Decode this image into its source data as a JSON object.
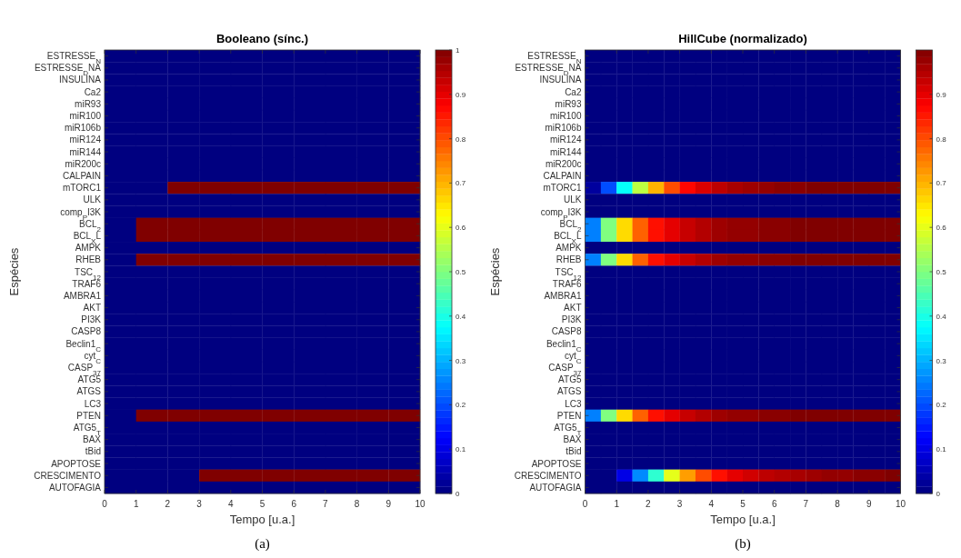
{
  "chart_data": [
    {
      "type": "heatmap",
      "title": "Booleano (sínc.)",
      "xlabel": "Tempo [u.a.]",
      "ylabel": "Espécies",
      "annotations": [
        "(a)"
      ],
      "x": [
        0.5,
        1.5,
        2.5,
        3.5,
        4.5,
        5.5,
        6.5,
        7.5,
        8.5,
        9.5
      ],
      "xlim": [
        0,
        10
      ],
      "xticks": [
        0,
        1,
        2,
        3,
        4,
        5,
        6,
        7,
        8,
        9,
        10
      ],
      "y_categories": [
        "ESTRESSE$_{N}$",
        "ESTRESSE$_{D}$NA",
        "INSULINA",
        "Ca2",
        "miR93",
        "miR100",
        "miR106b",
        "miR124",
        "miR144",
        "miR200c",
        "CALPAIN",
        "mTORC1",
        "ULK",
        "comp$_{P}$I3K",
        "BCL$_{2}$",
        "BCL$_{X}$L",
        "AMPK",
        "RHEB",
        "TSC$_{12}$",
        "TRAF6",
        "AMBRA1",
        "AKT",
        "PI3K",
        "CASP8",
        "Beclin1$_{C}$",
        "cyt$_{C}$",
        "CASP$_{37}$",
        "ATG5",
        "ATGS",
        "LC3",
        "PTEN",
        "ATG5$_{T}$",
        "BAX",
        "tBid",
        "APOPTOSE",
        "CRESCIMENTO",
        "AUTOFAGIA"
      ],
      "cells": [
        [
          0,
          0,
          0,
          0,
          0,
          0,
          0,
          0,
          0,
          0
        ],
        [
          0,
          0,
          0,
          0,
          0,
          0,
          0,
          0,
          0,
          0
        ],
        [
          0,
          0,
          0,
          0,
          0,
          0,
          0,
          0,
          0,
          0
        ],
        [
          0,
          0,
          0,
          0,
          0,
          0,
          0,
          0,
          0,
          0
        ],
        [
          0,
          0,
          0,
          0,
          0,
          0,
          0,
          0,
          0,
          0
        ],
        [
          0,
          0,
          0,
          0,
          0,
          0,
          0,
          0,
          0,
          0
        ],
        [
          0,
          0,
          0,
          0,
          0,
          0,
          0,
          0,
          0,
          0
        ],
        [
          0,
          0,
          0,
          0,
          0,
          0,
          0,
          0,
          0,
          0
        ],
        [
          0,
          0,
          0,
          0,
          0,
          0,
          0,
          0,
          0,
          0
        ],
        [
          0,
          0,
          0,
          0,
          0,
          0,
          0,
          0,
          0,
          0
        ],
        [
          0,
          0,
          0,
          0,
          0,
          0,
          0,
          0,
          0,
          0
        ],
        [
          0,
          0,
          1,
          1,
          1,
          1,
          1,
          1,
          1,
          1
        ],
        [
          0,
          0,
          0,
          0,
          0,
          0,
          0,
          0,
          0,
          0
        ],
        [
          0,
          0,
          0,
          0,
          0,
          0,
          0,
          0,
          0,
          0
        ],
        [
          0,
          1,
          1,
          1,
          1,
          1,
          1,
          1,
          1,
          1
        ],
        [
          0,
          1,
          1,
          1,
          1,
          1,
          1,
          1,
          1,
          1
        ],
        [
          0,
          0,
          0,
          0,
          0,
          0,
          0,
          0,
          0,
          0
        ],
        [
          0,
          1,
          1,
          1,
          1,
          1,
          1,
          1,
          1,
          1
        ],
        [
          0,
          0,
          0,
          0,
          0,
          0,
          0,
          0,
          0,
          0
        ],
        [
          0,
          0,
          0,
          0,
          0,
          0,
          0,
          0,
          0,
          0
        ],
        [
          0,
          0,
          0,
          0,
          0,
          0,
          0,
          0,
          0,
          0
        ],
        [
          0,
          0,
          0,
          0,
          0,
          0,
          0,
          0,
          0,
          0
        ],
        [
          0,
          0,
          0,
          0,
          0,
          0,
          0,
          0,
          0,
          0
        ],
        [
          0,
          0,
          0,
          0,
          0,
          0,
          0,
          0,
          0,
          0
        ],
        [
          0,
          0,
          0,
          0,
          0,
          0,
          0,
          0,
          0,
          0
        ],
        [
          0,
          0,
          0,
          0,
          0,
          0,
          0,
          0,
          0,
          0
        ],
        [
          0,
          0,
          0,
          0,
          0,
          0,
          0,
          0,
          0,
          0
        ],
        [
          0,
          0,
          0,
          0,
          0,
          0,
          0,
          0,
          0,
          0
        ],
        [
          0,
          0,
          0,
          0,
          0,
          0,
          0,
          0,
          0,
          0
        ],
        [
          0,
          0,
          0,
          0,
          0,
          0,
          0,
          0,
          0,
          0
        ],
        [
          0,
          1,
          1,
          1,
          1,
          1,
          1,
          1,
          1,
          1
        ],
        [
          0,
          0,
          0,
          0,
          0,
          0,
          0,
          0,
          0,
          0
        ],
        [
          0,
          0,
          0,
          0,
          0,
          0,
          0,
          0,
          0,
          0
        ],
        [
          0,
          0,
          0,
          0,
          0,
          0,
          0,
          0,
          0,
          0
        ],
        [
          0,
          0,
          0,
          0,
          0,
          0,
          0,
          0,
          0,
          0
        ],
        [
          0,
          0,
          0,
          1,
          1,
          1,
          1,
          1,
          1,
          1
        ],
        [
          0,
          0,
          0,
          0,
          0,
          0,
          0,
          0,
          0,
          0
        ]
      ],
      "clim": [
        0,
        1
      ],
      "cticks": [
        0,
        0.1,
        0.2,
        0.3,
        0.4,
        0.5,
        0.6,
        0.7,
        0.8,
        0.9,
        1
      ]
    },
    {
      "type": "heatmap",
      "title": "HillCube (normalizado)",
      "xlabel": "Tempo [u.a.]",
      "ylabel": "Espécies",
      "annotations": [
        "(b)"
      ],
      "x": [
        0.25,
        0.75,
        1.25,
        1.75,
        2.25,
        2.75,
        3.25,
        3.75,
        4.25,
        4.75,
        5.25,
        5.75,
        6.25,
        6.75,
        7.25,
        7.75,
        8.25,
        8.75,
        9.25,
        9.75
      ],
      "xlim": [
        0,
        10
      ],
      "xticks": [
        0,
        1,
        2,
        3,
        4,
        5,
        6,
        7,
        8,
        9,
        10
      ],
      "y_categories": [
        "ESTRESSE$_{N}$",
        "ESTRESSE$_{D}$NA",
        "INSULINA",
        "Ca2",
        "miR93",
        "miR100",
        "miR106b",
        "miR124",
        "miR144",
        "miR200c",
        "CALPAIN",
        "mTORC1",
        "ULK",
        "comp$_{P}$I3K",
        "BCL$_{2}$",
        "BCL$_{X}$L",
        "AMPK",
        "RHEB",
        "TSC$_{12}$",
        "TRAF6",
        "AMBRA1",
        "AKT",
        "PI3K",
        "CASP8",
        "Beclin1$_{C}$",
        "cyt$_{C}$",
        "CASP$_{37}$",
        "ATG5",
        "ATGS",
        "LC3",
        "PTEN",
        "ATG5$_{T}$",
        "BAX",
        "tBid",
        "APOPTOSE",
        "CRESCIMENTO",
        "AUTOFAGIA"
      ],
      "cells": [
        [
          0,
          0,
          0,
          0,
          0,
          0,
          0,
          0,
          0,
          0,
          0,
          0,
          0,
          0,
          0,
          0,
          0,
          0,
          0,
          0
        ],
        [
          0,
          0,
          0,
          0,
          0,
          0,
          0,
          0,
          0,
          0,
          0,
          0,
          0,
          0,
          0,
          0,
          0,
          0,
          0,
          0
        ],
        [
          0,
          0,
          0,
          0,
          0,
          0,
          0,
          0,
          0,
          0,
          0,
          0,
          0,
          0,
          0,
          0,
          0,
          0,
          0,
          0
        ],
        [
          0,
          0,
          0,
          0,
          0,
          0,
          0,
          0,
          0,
          0,
          0,
          0,
          0,
          0,
          0,
          0,
          0,
          0,
          0,
          0
        ],
        [
          0,
          0,
          0,
          0,
          0,
          0,
          0,
          0,
          0,
          0,
          0,
          0,
          0,
          0,
          0,
          0,
          0,
          0,
          0,
          0
        ],
        [
          0,
          0,
          0,
          0,
          0,
          0,
          0,
          0,
          0,
          0,
          0,
          0,
          0,
          0,
          0,
          0,
          0,
          0,
          0,
          0
        ],
        [
          0,
          0,
          0,
          0,
          0,
          0,
          0,
          0,
          0,
          0,
          0,
          0,
          0,
          0,
          0,
          0,
          0,
          0,
          0,
          0
        ],
        [
          0,
          0,
          0,
          0,
          0,
          0,
          0,
          0,
          0,
          0,
          0,
          0,
          0,
          0,
          0,
          0,
          0,
          0,
          0,
          0
        ],
        [
          0,
          0,
          0,
          0,
          0,
          0,
          0,
          0,
          0,
          0,
          0,
          0,
          0,
          0,
          0,
          0,
          0,
          0,
          0,
          0
        ],
        [
          0,
          0,
          0,
          0,
          0,
          0,
          0,
          0,
          0,
          0,
          0,
          0,
          0,
          0,
          0,
          0,
          0,
          0,
          0,
          0
        ],
        [
          0,
          0,
          0,
          0,
          0,
          0,
          0,
          0,
          0,
          0,
          0,
          0,
          0,
          0,
          0,
          0,
          0,
          0,
          0,
          0
        ],
        [
          0.03,
          0.2,
          0.38,
          0.56,
          0.7,
          0.8,
          0.87,
          0.91,
          0.94,
          0.96,
          0.97,
          0.98,
          0.99,
          0.99,
          1,
          1,
          1,
          1,
          1,
          1
        ],
        [
          0,
          0,
          0,
          0,
          0,
          0,
          0,
          0,
          0,
          0,
          0,
          0,
          0,
          0,
          0,
          0,
          0,
          0,
          0,
          0
        ],
        [
          0,
          0,
          0,
          0,
          0,
          0,
          0,
          0,
          0,
          0,
          0,
          0,
          0,
          0,
          0,
          0,
          0,
          0,
          0,
          0
        ],
        [
          0.25,
          0.5,
          0.66,
          0.78,
          0.86,
          0.9,
          0.93,
          0.95,
          0.97,
          0.98,
          0.98,
          0.99,
          0.99,
          1,
          1,
          1,
          1,
          1,
          1,
          1
        ],
        [
          0.25,
          0.5,
          0.66,
          0.78,
          0.86,
          0.9,
          0.93,
          0.95,
          0.97,
          0.98,
          0.98,
          0.99,
          0.99,
          1,
          1,
          1,
          1,
          1,
          1,
          1
        ],
        [
          0,
          0,
          0,
          0,
          0,
          0,
          0,
          0,
          0,
          0,
          0,
          0,
          0,
          0,
          0,
          0,
          0,
          0,
          0,
          0
        ],
        [
          0.25,
          0.5,
          0.66,
          0.78,
          0.86,
          0.9,
          0.93,
          0.95,
          0.97,
          0.98,
          0.98,
          0.99,
          0.99,
          1,
          1,
          1,
          1,
          1,
          1,
          1
        ],
        [
          0,
          0,
          0,
          0,
          0,
          0,
          0,
          0,
          0,
          0,
          0,
          0,
          0,
          0,
          0,
          0,
          0,
          0,
          0,
          0
        ],
        [
          0,
          0,
          0,
          0,
          0,
          0,
          0,
          0,
          0,
          0,
          0,
          0,
          0,
          0,
          0,
          0,
          0,
          0,
          0,
          0
        ],
        [
          0,
          0,
          0,
          0,
          0,
          0,
          0,
          0,
          0,
          0,
          0,
          0,
          0,
          0,
          0,
          0,
          0,
          0,
          0,
          0
        ],
        [
          0,
          0,
          0,
          0,
          0,
          0,
          0,
          0,
          0,
          0,
          0,
          0,
          0,
          0,
          0,
          0,
          0,
          0,
          0,
          0
        ],
        [
          0,
          0,
          0,
          0,
          0,
          0,
          0,
          0,
          0,
          0,
          0,
          0,
          0,
          0,
          0,
          0,
          0,
          0,
          0,
          0
        ],
        [
          0,
          0,
          0,
          0,
          0,
          0,
          0,
          0,
          0,
          0,
          0,
          0,
          0,
          0,
          0,
          0,
          0,
          0,
          0,
          0
        ],
        [
          0,
          0,
          0,
          0,
          0,
          0,
          0,
          0,
          0,
          0,
          0,
          0,
          0,
          0,
          0,
          0,
          0,
          0,
          0,
          0
        ],
        [
          0,
          0,
          0,
          0,
          0,
          0,
          0,
          0,
          0,
          0,
          0,
          0,
          0,
          0,
          0,
          0,
          0,
          0,
          0,
          0
        ],
        [
          0,
          0,
          0,
          0,
          0,
          0,
          0,
          0,
          0,
          0,
          0,
          0,
          0,
          0,
          0,
          0,
          0,
          0,
          0,
          0
        ],
        [
          0,
          0,
          0,
          0,
          0,
          0,
          0,
          0,
          0,
          0,
          0,
          0,
          0,
          0,
          0,
          0,
          0,
          0,
          0,
          0
        ],
        [
          0,
          0,
          0,
          0,
          0,
          0,
          0,
          0,
          0,
          0,
          0,
          0,
          0,
          0,
          0,
          0,
          0,
          0,
          0,
          0
        ],
        [
          0,
          0,
          0,
          0,
          0,
          0,
          0,
          0,
          0,
          0,
          0,
          0,
          0,
          0,
          0,
          0,
          0,
          0,
          0,
          0
        ],
        [
          0.25,
          0.5,
          0.66,
          0.78,
          0.86,
          0.9,
          0.93,
          0.95,
          0.97,
          0.98,
          0.98,
          0.99,
          0.99,
          1,
          1,
          1,
          1,
          1,
          1,
          1
        ],
        [
          0,
          0,
          0,
          0,
          0,
          0,
          0,
          0,
          0,
          0,
          0,
          0,
          0,
          0,
          0,
          0,
          0,
          0,
          0,
          0
        ],
        [
          0,
          0,
          0,
          0,
          0,
          0,
          0,
          0,
          0,
          0,
          0,
          0,
          0,
          0,
          0,
          0,
          0,
          0,
          0,
          0
        ],
        [
          0,
          0,
          0,
          0,
          0,
          0,
          0,
          0,
          0,
          0,
          0,
          0,
          0,
          0,
          0,
          0,
          0,
          0,
          0,
          0
        ],
        [
          0,
          0,
          0,
          0,
          0,
          0,
          0,
          0,
          0,
          0,
          0,
          0,
          0,
          0,
          0,
          0,
          0,
          0,
          0,
          0
        ],
        [
          0,
          0,
          0.1,
          0.26,
          0.42,
          0.6,
          0.72,
          0.8,
          0.86,
          0.9,
          0.92,
          0.94,
          0.95,
          0.96,
          0.97,
          0.98,
          0.98,
          0.99,
          0.99,
          1
        ],
        [
          0,
          0,
          0,
          0,
          0,
          0,
          0,
          0,
          0,
          0,
          0,
          0,
          0,
          0,
          0,
          0,
          0,
          0,
          0,
          0
        ]
      ],
      "clim": [
        0,
        1
      ],
      "cticks": [
        0,
        0.1,
        0.2,
        0.3,
        0.4,
        0.5,
        0.6,
        0.7,
        0.8,
        0.9
      ]
    }
  ]
}
